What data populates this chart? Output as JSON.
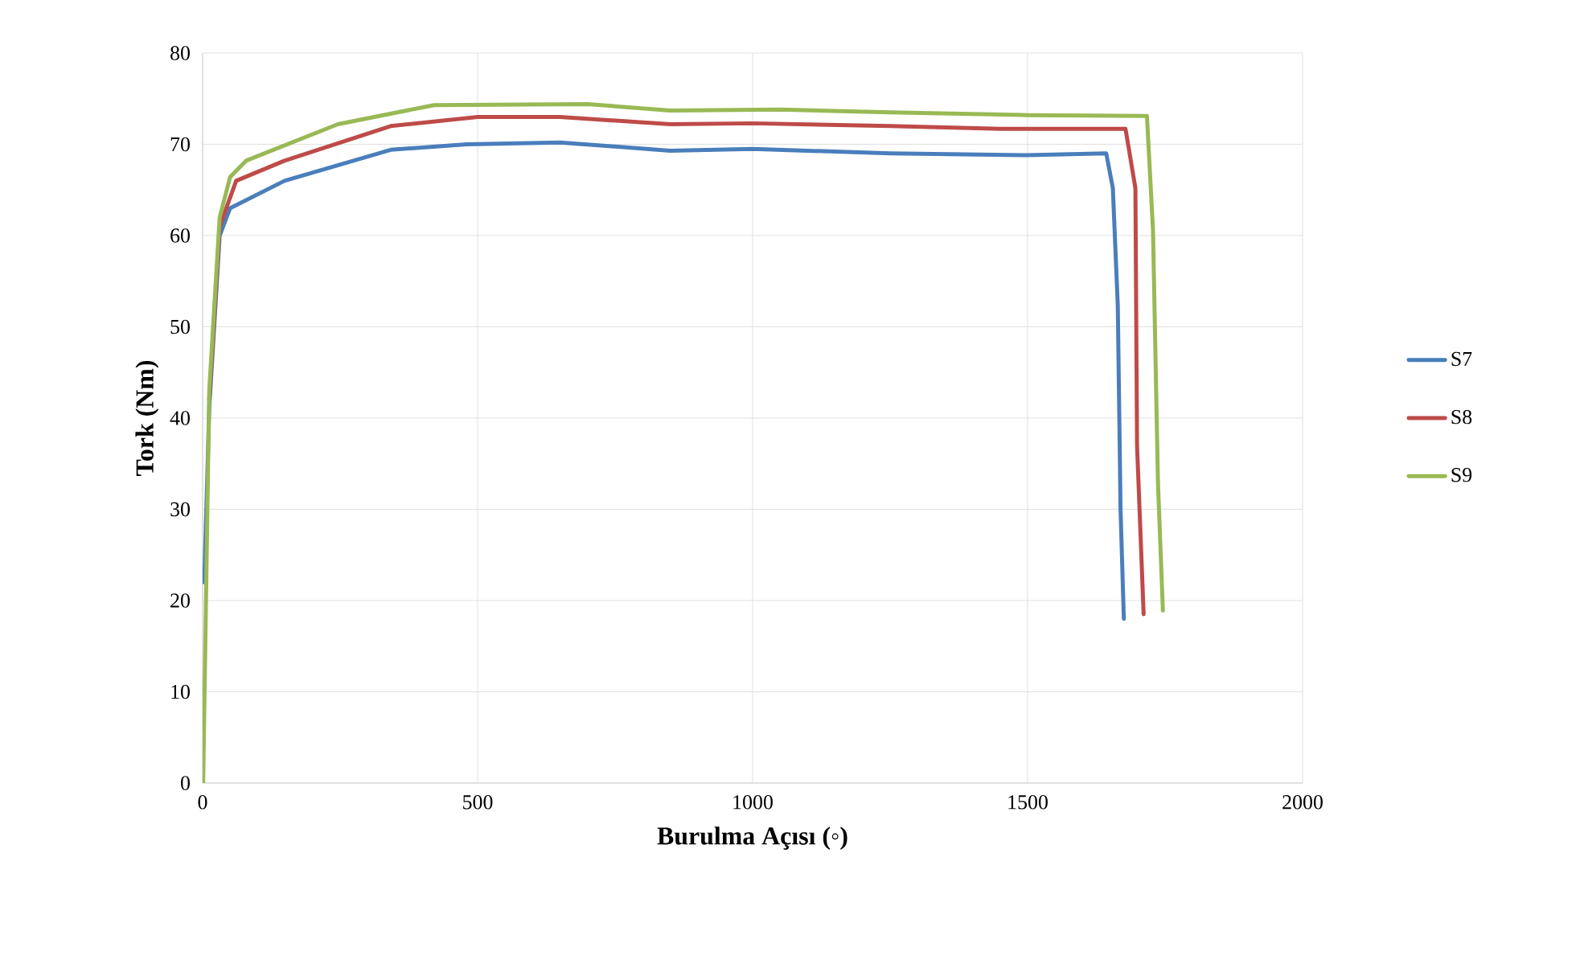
{
  "chart_data": {
    "type": "line",
    "xlabel": "Burulma Açısı (◦)",
    "ylabel": "Tork (Nm)",
    "xlim": [
      0,
      2000
    ],
    "xticks": [
      0,
      500,
      1000,
      1500,
      2000
    ],
    "ylim": [
      0,
      80
    ],
    "yticks": [
      0,
      10,
      20,
      30,
      40,
      50,
      60,
      70,
      80
    ],
    "grid": true,
    "legend": "right",
    "marker": "none",
    "line_style": "solid",
    "series": [
      {
        "name": "S7",
        "color": "#4a7ebb",
        "x": [
          3,
          12,
          31,
          50,
          149,
          342,
          480,
          650,
          850,
          1000,
          1250,
          1500,
          1643,
          1655,
          1664,
          1669,
          1675
        ],
        "values": [
          22,
          41,
          60,
          63,
          66,
          69.4,
          70,
          70.2,
          69.3,
          69.5,
          69,
          68.8,
          69,
          65.2,
          52.3,
          30,
          18
        ]
      },
      {
        "name": "S8",
        "color": "#be4b48",
        "x": [
          12,
          31,
          61,
          149,
          342,
          500,
          650,
          850,
          1000,
          1250,
          1450,
          1678,
          1696,
          1699,
          1711
        ],
        "values": [
          42,
          61,
          66,
          68.2,
          72,
          73,
          73,
          72.2,
          72.3,
          72,
          71.7,
          71.7,
          65.2,
          37,
          18.5
        ]
      },
      {
        "name": "S9",
        "color": "#98b954",
        "x": [
          1,
          12,
          31,
          50,
          79,
          246,
          421,
          700,
          850,
          1050,
          1250,
          1500,
          1717,
          1728,
          1737,
          1746
        ],
        "values": [
          0,
          43,
          62,
          66.4,
          68.2,
          72.2,
          74.3,
          74.4,
          73.7,
          73.8,
          73.5,
          73.2,
          73.1,
          60.6,
          33,
          18.9
        ]
      }
    ]
  }
}
